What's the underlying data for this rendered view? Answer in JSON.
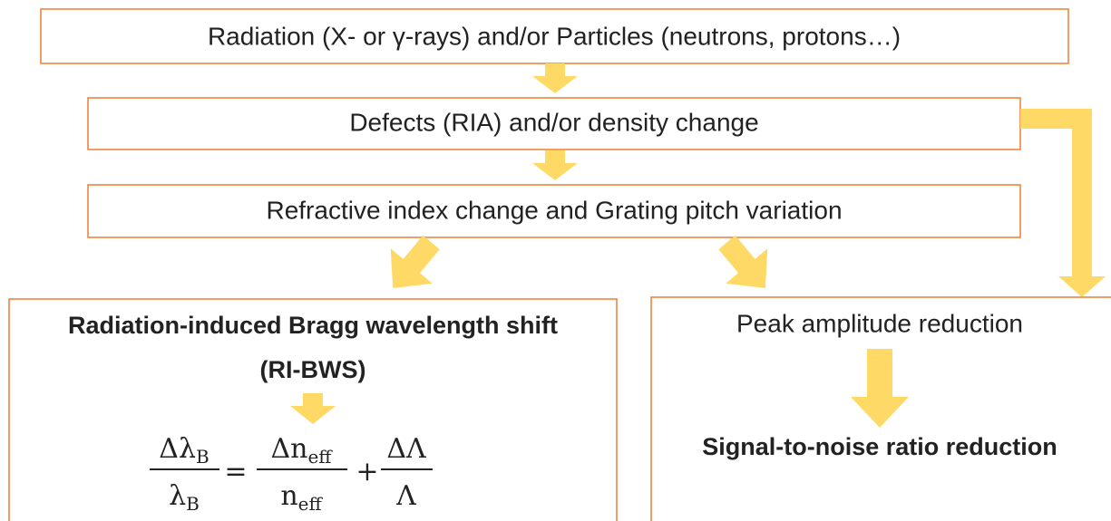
{
  "boxes": [
    {
      "text": "Radiation (X- or γ-rays) and/or Particles (neutrons, protons…)"
    },
    {
      "text": "Defects (RIA) and/or density change"
    },
    {
      "text": "Refractive index change and Grating pitch variation"
    }
  ],
  "left_box": {
    "title": "Radiation-induced Bragg wavelength shift",
    "subtitle": "(RI-BWS)",
    "formula": {
      "lhs": {
        "num": "Δλ",
        "num_sub": "B",
        "den": "λ",
        "den_sub": "B"
      },
      "equals": "=",
      "term1": {
        "num": "Δn",
        "num_sub": "eff",
        "den": "n",
        "den_sub": "eff"
      },
      "plus": "+",
      "term2": {
        "num": "ΔΛ",
        "den": "Λ"
      }
    }
  },
  "right_box": {
    "text": "Peak amplitude reduction",
    "result": "Signal-to-noise ratio reduction"
  }
}
